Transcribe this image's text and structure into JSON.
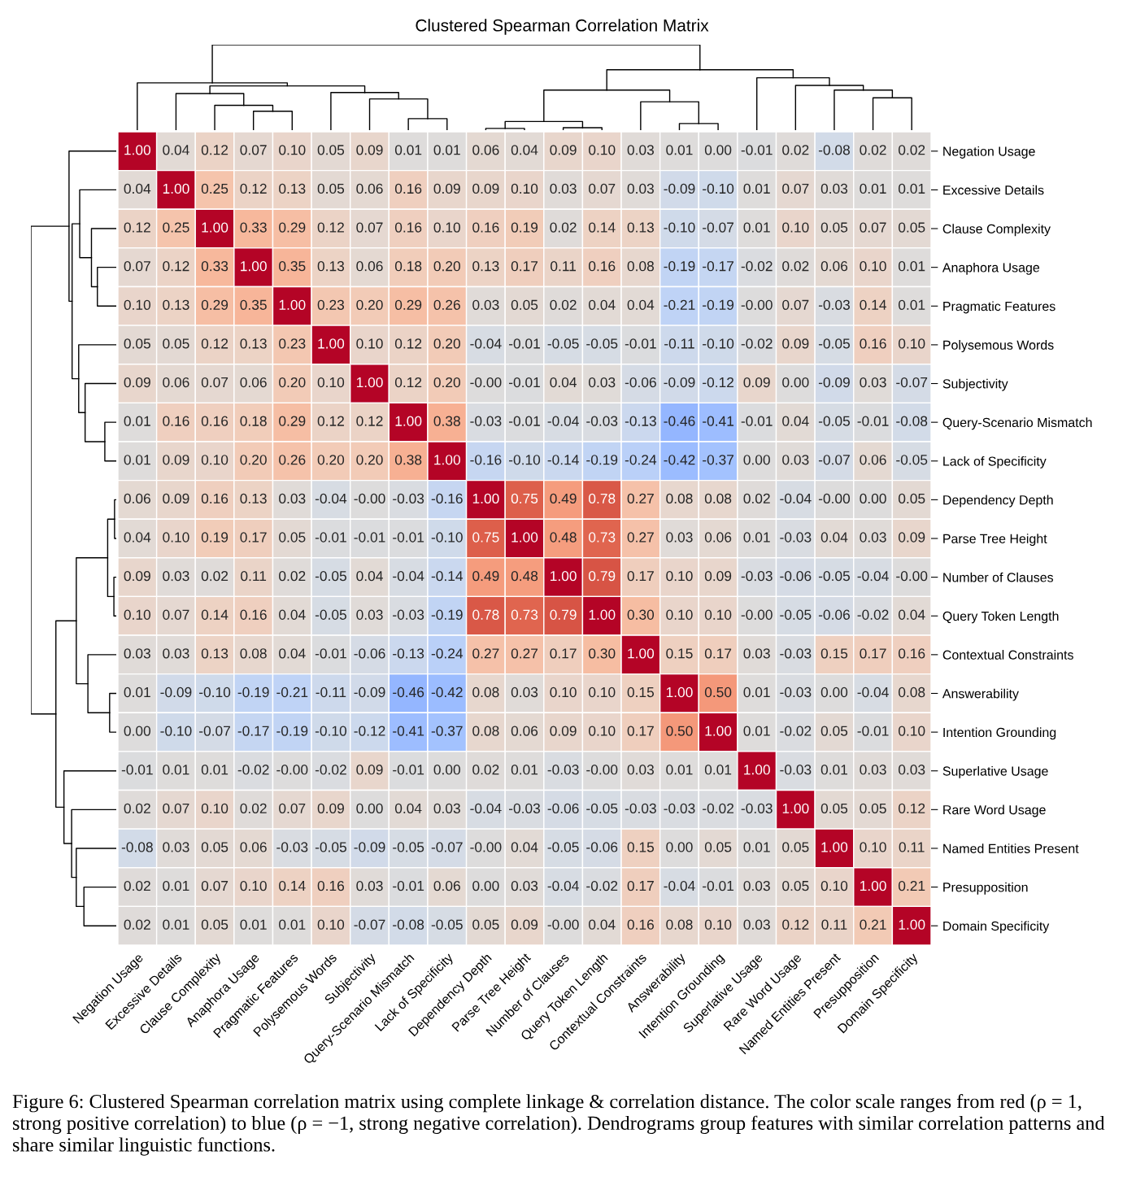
{
  "chart_data": {
    "type": "heatmap",
    "title": "Clustered Spearman Correlation Matrix",
    "categories": [
      "Negation Usage",
      "Excessive Details",
      "Clause Complexity",
      "Anaphora Usage",
      "Pragmatic Features",
      "Polysemous Words",
      "Subjectivity",
      "Query-Scenario Mismatch",
      "Lack of Specificity",
      "Dependency Depth",
      "Parse Tree Height",
      "Number of Clauses",
      "Query Token Length",
      "Contextual Constraints",
      "Answerability",
      "Intention Grounding",
      "Superlative Usage",
      "Rare Word Usage",
      "Named Entities Present",
      "Presupposition",
      "Domain Specificity"
    ],
    "y_categories": [
      "Negation Usage",
      "Excessive Details",
      "Clause Complexity",
      "Anaphora Usage",
      "Pragmatic Features",
      "Polysemous Words",
      "Subjectivity",
      "Query-Scenario Mismatch",
      "Lack of Specificity",
      "Dependency Depth",
      "Parse Tree Height",
      "Number of Clauses",
      "Query Token Length",
      "Contextual Constraints",
      "Answerability",
      "Intention Grounding",
      "Superlative Usage",
      "Rare Word Usage",
      "Named Entities Present",
      "Presupposition",
      "Domain Specificity"
    ],
    "cells": [
      [
        1.0,
        0.04,
        0.12,
        0.07,
        0.1,
        0.05,
        0.09,
        0.01,
        0.01,
        0.06,
        0.04,
        0.09,
        0.1,
        0.03,
        0.01,
        0.0,
        -0.01,
        0.02,
        -0.08,
        0.02,
        0.02
      ],
      [
        0.04,
        1.0,
        0.25,
        0.12,
        0.13,
        0.05,
        0.06,
        0.16,
        0.09,
        0.09,
        0.1,
        0.03,
        0.07,
        0.03,
        -0.09,
        -0.1,
        0.01,
        0.07,
        0.03,
        0.01,
        0.01
      ],
      [
        0.12,
        0.25,
        1.0,
        0.33,
        0.29,
        0.12,
        0.07,
        0.16,
        0.1,
        0.16,
        0.19,
        0.02,
        0.14,
        0.13,
        -0.1,
        -0.07,
        0.01,
        0.1,
        0.05,
        0.07,
        0.05
      ],
      [
        0.07,
        0.12,
        0.33,
        1.0,
        0.35,
        0.13,
        0.06,
        0.18,
        0.2,
        0.13,
        0.17,
        0.11,
        0.16,
        0.08,
        -0.19,
        -0.17,
        -0.02,
        0.02,
        0.06,
        0.1,
        0.01
      ],
      [
        0.1,
        0.13,
        0.29,
        0.35,
        1.0,
        0.23,
        0.2,
        0.29,
        0.26,
        0.03,
        0.05,
        0.02,
        0.04,
        0.04,
        -0.21,
        -0.19,
        -0.0,
        0.07,
        -0.03,
        0.14,
        0.01
      ],
      [
        0.05,
        0.05,
        0.12,
        0.13,
        0.23,
        1.0,
        0.1,
        0.12,
        0.2,
        -0.04,
        -0.01,
        -0.05,
        -0.05,
        -0.01,
        -0.11,
        -0.1,
        -0.02,
        0.09,
        -0.05,
        0.16,
        0.1
      ],
      [
        0.09,
        0.06,
        0.07,
        0.06,
        0.2,
        0.1,
        1.0,
        0.12,
        0.2,
        -0.0,
        -0.01,
        0.04,
        0.03,
        -0.06,
        -0.09,
        -0.12,
        0.09,
        0.0,
        -0.09,
        0.03,
        -0.07
      ],
      [
        0.01,
        0.16,
        0.16,
        0.18,
        0.29,
        0.12,
        0.12,
        1.0,
        0.38,
        -0.03,
        -0.01,
        -0.04,
        -0.03,
        -0.13,
        -0.46,
        -0.41,
        -0.01,
        0.04,
        -0.05,
        -0.01,
        -0.08
      ],
      [
        0.01,
        0.09,
        0.1,
        0.2,
        0.26,
        0.2,
        0.2,
        0.38,
        1.0,
        -0.16,
        -0.1,
        -0.14,
        -0.19,
        -0.24,
        -0.42,
        -0.37,
        0.0,
        0.03,
        -0.07,
        0.06,
        -0.05
      ],
      [
        0.06,
        0.09,
        0.16,
        0.13,
        0.03,
        -0.04,
        -0.0,
        -0.03,
        -0.16,
        1.0,
        0.75,
        0.49,
        0.78,
        0.27,
        0.08,
        0.08,
        0.02,
        -0.04,
        -0.0,
        0.0,
        0.05
      ],
      [
        0.04,
        0.1,
        0.19,
        0.17,
        0.05,
        -0.01,
        -0.01,
        -0.01,
        -0.1,
        0.75,
        1.0,
        0.48,
        0.73,
        0.27,
        0.03,
        0.06,
        0.01,
        -0.03,
        0.04,
        0.03,
        0.09
      ],
      [
        0.09,
        0.03,
        0.02,
        0.11,
        0.02,
        -0.05,
        0.04,
        -0.04,
        -0.14,
        0.49,
        0.48,
        1.0,
        0.79,
        0.17,
        0.1,
        0.09,
        -0.03,
        -0.06,
        -0.05,
        -0.04,
        -0.0
      ],
      [
        0.1,
        0.07,
        0.14,
        0.16,
        0.04,
        -0.05,
        0.03,
        -0.03,
        -0.19,
        0.78,
        0.73,
        0.79,
        1.0,
        0.3,
        0.1,
        0.1,
        -0.0,
        -0.05,
        -0.06,
        -0.02,
        0.04
      ],
      [
        0.03,
        0.03,
        0.13,
        0.08,
        0.04,
        -0.01,
        -0.06,
        -0.13,
        -0.24,
        0.27,
        0.27,
        0.17,
        0.3,
        1.0,
        0.15,
        0.17,
        0.03,
        -0.03,
        0.15,
        0.17,
        0.16
      ],
      [
        0.01,
        -0.09,
        -0.1,
        -0.19,
        -0.21,
        -0.11,
        -0.09,
        -0.46,
        -0.42,
        0.08,
        0.03,
        0.1,
        0.1,
        0.15,
        1.0,
        0.5,
        0.01,
        -0.03,
        0.0,
        -0.04,
        0.08
      ],
      [
        0.0,
        -0.1,
        -0.07,
        -0.17,
        -0.19,
        -0.1,
        -0.12,
        -0.41,
        -0.37,
        0.08,
        0.06,
        0.09,
        0.1,
        0.17,
        0.5,
        1.0,
        0.01,
        -0.02,
        0.05,
        -0.01,
        0.1
      ],
      [
        -0.01,
        0.01,
        0.01,
        -0.02,
        -0.0,
        -0.02,
        0.09,
        -0.01,
        0.0,
        0.02,
        0.01,
        -0.03,
        -0.0,
        0.03,
        0.01,
        0.01,
        1.0,
        -0.03,
        0.01,
        0.03,
        0.03
      ],
      [
        0.02,
        0.07,
        0.1,
        0.02,
        0.07,
        0.09,
        0.0,
        0.04,
        0.03,
        -0.04,
        -0.03,
        -0.06,
        -0.05,
        -0.03,
        -0.03,
        -0.02,
        -0.03,
        1.0,
        0.05,
        0.05,
        0.12
      ],
      [
        -0.08,
        0.03,
        0.05,
        0.06,
        -0.03,
        -0.05,
        -0.09,
        -0.05,
        -0.07,
        -0.0,
        0.04,
        -0.05,
        -0.06,
        0.15,
        0.0,
        0.05,
        0.01,
        0.05,
        1.0,
        0.1,
        0.11
      ],
      [
        0.02,
        0.01,
        0.07,
        0.1,
        0.14,
        0.16,
        0.03,
        -0.01,
        0.06,
        0.0,
        0.03,
        -0.04,
        -0.02,
        0.17,
        -0.04,
        -0.01,
        0.03,
        0.05,
        0.1,
        1.0,
        0.21
      ],
      [
        0.02,
        0.01,
        0.05,
        0.01,
        0.01,
        0.1,
        -0.07,
        -0.08,
        -0.05,
        0.05,
        0.09,
        -0.0,
        0.04,
        0.16,
        0.08,
        0.1,
        0.03,
        0.12,
        0.11,
        0.21,
        1.0
      ]
    ],
    "cell_labels": [
      [
        "1.00",
        "0.04",
        "0.12",
        "0.07",
        "0.10",
        "0.05",
        "0.09",
        "0.01",
        "0.01",
        "0.06",
        "0.04",
        "0.09",
        "0.10",
        "0.03",
        "0.01",
        "0.00",
        "-0.01",
        "0.02",
        "-0.08",
        "0.02",
        "0.02"
      ],
      [
        "0.04",
        "1.00",
        "0.25",
        "0.12",
        "0.13",
        "0.05",
        "0.06",
        "0.16",
        "0.09",
        "0.09",
        "0.10",
        "0.03",
        "0.07",
        "0.03",
        "-0.09",
        "-0.10",
        "0.01",
        "0.07",
        "0.03",
        "0.01",
        "0.01"
      ],
      [
        "0.12",
        "0.25",
        "1.00",
        "0.33",
        "0.29",
        "0.12",
        "0.07",
        "0.16",
        "0.10",
        "0.16",
        "0.19",
        "0.02",
        "0.14",
        "0.13",
        "-0.10",
        "-0.07",
        "0.01",
        "0.10",
        "0.05",
        "0.07",
        "0.05"
      ],
      [
        "0.07",
        "0.12",
        "0.33",
        "1.00",
        "0.35",
        "0.13",
        "0.06",
        "0.18",
        "0.20",
        "0.13",
        "0.17",
        "0.11",
        "0.16",
        "0.08",
        "-0.19",
        "-0.17",
        "-0.02",
        "0.02",
        "0.06",
        "0.10",
        "0.01"
      ],
      [
        "0.10",
        "0.13",
        "0.29",
        "0.35",
        "1.00",
        "0.23",
        "0.20",
        "0.29",
        "0.26",
        "0.03",
        "0.05",
        "0.02",
        "0.04",
        "0.04",
        "-0.21",
        "-0.19",
        "-0.00",
        "0.07",
        "-0.03",
        "0.14",
        "0.01"
      ],
      [
        "0.05",
        "0.05",
        "0.12",
        "0.13",
        "0.23",
        "1.00",
        "0.10",
        "0.12",
        "0.20",
        "-0.04",
        "-0.01",
        "-0.05",
        "-0.05",
        "-0.01",
        "-0.11",
        "-0.10",
        "-0.02",
        "0.09",
        "-0.05",
        "0.16",
        "0.10"
      ],
      [
        "0.09",
        "0.06",
        "0.07",
        "0.06",
        "0.20",
        "0.10",
        "1.00",
        "0.12",
        "0.20",
        "-0.00",
        "-0.01",
        "0.04",
        "0.03",
        "-0.06",
        "-0.09",
        "-0.12",
        "0.09",
        "0.00",
        "-0.09",
        "0.03",
        "-0.07"
      ],
      [
        "0.01",
        "0.16",
        "0.16",
        "0.18",
        "0.29",
        "0.12",
        "0.12",
        "1.00",
        "0.38",
        "-0.03",
        "-0.01",
        "-0.04",
        "-0.03",
        "-0.13",
        "-0.46",
        "-0.41",
        "-0.01",
        "0.04",
        "-0.05",
        "-0.01",
        "-0.08"
      ],
      [
        "0.01",
        "0.09",
        "0.10",
        "0.20",
        "0.26",
        "0.20",
        "0.20",
        "0.38",
        "1.00",
        "-0.16",
        "-0.10",
        "-0.14",
        "-0.19",
        "-0.24",
        "-0.42",
        "-0.37",
        "0.00",
        "0.03",
        "-0.07",
        "0.06",
        "-0.05"
      ],
      [
        "0.06",
        "0.09",
        "0.16",
        "0.13",
        "0.03",
        "-0.04",
        "-0.00",
        "-0.03",
        "-0.16",
        "1.00",
        "0.75",
        "0.49",
        "0.78",
        "0.27",
        "0.08",
        "0.08",
        "0.02",
        "-0.04",
        "-0.00",
        "0.00",
        "0.05"
      ],
      [
        "0.04",
        "0.10",
        "0.19",
        "0.17",
        "0.05",
        "-0.01",
        "-0.01",
        "-0.01",
        "-0.10",
        "0.75",
        "1.00",
        "0.48",
        "0.73",
        "0.27",
        "0.03",
        "0.06",
        "0.01",
        "-0.03",
        "0.04",
        "0.03",
        "0.09"
      ],
      [
        "0.09",
        "0.03",
        "0.02",
        "0.11",
        "0.02",
        "-0.05",
        "0.04",
        "-0.04",
        "-0.14",
        "0.49",
        "0.48",
        "1.00",
        "0.79",
        "0.17",
        "0.10",
        "0.09",
        "-0.03",
        "-0.06",
        "-0.05",
        "-0.04",
        "-0.00"
      ],
      [
        "0.10",
        "0.07",
        "0.14",
        "0.16",
        "0.04",
        "-0.05",
        "0.03",
        "-0.03",
        "-0.19",
        "0.78",
        "0.73",
        "0.79",
        "1.00",
        "0.30",
        "0.10",
        "0.10",
        "-0.00",
        "-0.05",
        "-0.06",
        "-0.02",
        "0.04"
      ],
      [
        "0.03",
        "0.03",
        "0.13",
        "0.08",
        "0.04",
        "-0.01",
        "-0.06",
        "-0.13",
        "-0.24",
        "0.27",
        "0.27",
        "0.17",
        "0.30",
        "1.00",
        "0.15",
        "0.17",
        "0.03",
        "-0.03",
        "0.15",
        "0.17",
        "0.16"
      ],
      [
        "0.01",
        "-0.09",
        "-0.10",
        "-0.19",
        "-0.21",
        "-0.11",
        "-0.09",
        "-0.46",
        "-0.42",
        "0.08",
        "0.03",
        "0.10",
        "0.10",
        "0.15",
        "1.00",
        "0.50",
        "0.01",
        "-0.03",
        "0.00",
        "-0.04",
        "0.08"
      ],
      [
        "0.00",
        "-0.10",
        "-0.07",
        "-0.17",
        "-0.19",
        "-0.10",
        "-0.12",
        "-0.41",
        "-0.37",
        "0.08",
        "0.06",
        "0.09",
        "0.10",
        "0.17",
        "0.50",
        "1.00",
        "0.01",
        "-0.02",
        "0.05",
        "-0.01",
        "0.10"
      ],
      [
        "-0.01",
        "0.01",
        "0.01",
        "-0.02",
        "-0.00",
        "-0.02",
        "0.09",
        "-0.01",
        "0.00",
        "0.02",
        "0.01",
        "-0.03",
        "-0.00",
        "0.03",
        "0.01",
        "0.01",
        "1.00",
        "-0.03",
        "0.01",
        "0.03",
        "0.03"
      ],
      [
        "0.02",
        "0.07",
        "0.10",
        "0.02",
        "0.07",
        "0.09",
        "0.00",
        "0.04",
        "0.03",
        "-0.04",
        "-0.03",
        "-0.06",
        "-0.05",
        "-0.03",
        "-0.03",
        "-0.02",
        "-0.03",
        "1.00",
        "0.05",
        "0.05",
        "0.12"
      ],
      [
        "-0.08",
        "0.03",
        "0.05",
        "0.06",
        "-0.03",
        "-0.05",
        "-0.09",
        "-0.05",
        "-0.07",
        "-0.00",
        "0.04",
        "-0.05",
        "-0.06",
        "0.15",
        "0.00",
        "0.05",
        "0.01",
        "0.05",
        "1.00",
        "0.10",
        "0.11"
      ],
      [
        "0.02",
        "0.01",
        "0.07",
        "0.10",
        "0.14",
        "0.16",
        "0.03",
        "-0.01",
        "0.06",
        "0.00",
        "0.03",
        "-0.04",
        "-0.02",
        "0.17",
        "-0.04",
        "-0.01",
        "0.03",
        "0.05",
        "0.10",
        "1.00",
        "0.21"
      ],
      [
        "0.02",
        "0.01",
        "0.05",
        "0.01",
        "0.01",
        "0.10",
        "-0.07",
        "-0.08",
        "-0.05",
        "0.05",
        "0.09",
        "-0.00",
        "0.04",
        "0.16",
        "0.08",
        "0.10",
        "0.03",
        "0.12",
        "0.11",
        "0.21",
        "1.00"
      ]
    ],
    "data_labels": true,
    "annotations": [
      "Figure 6: Clustered Spearman correlation matrix using complete linkage & correlation distance. The color scale ranges from red (ρ = 1, strong positive correlation) to blue (ρ = −1, strong negative correlation). Dendrograms group features with similar correlation patterns and share similar linguistic functions."
    ]
  }
}
